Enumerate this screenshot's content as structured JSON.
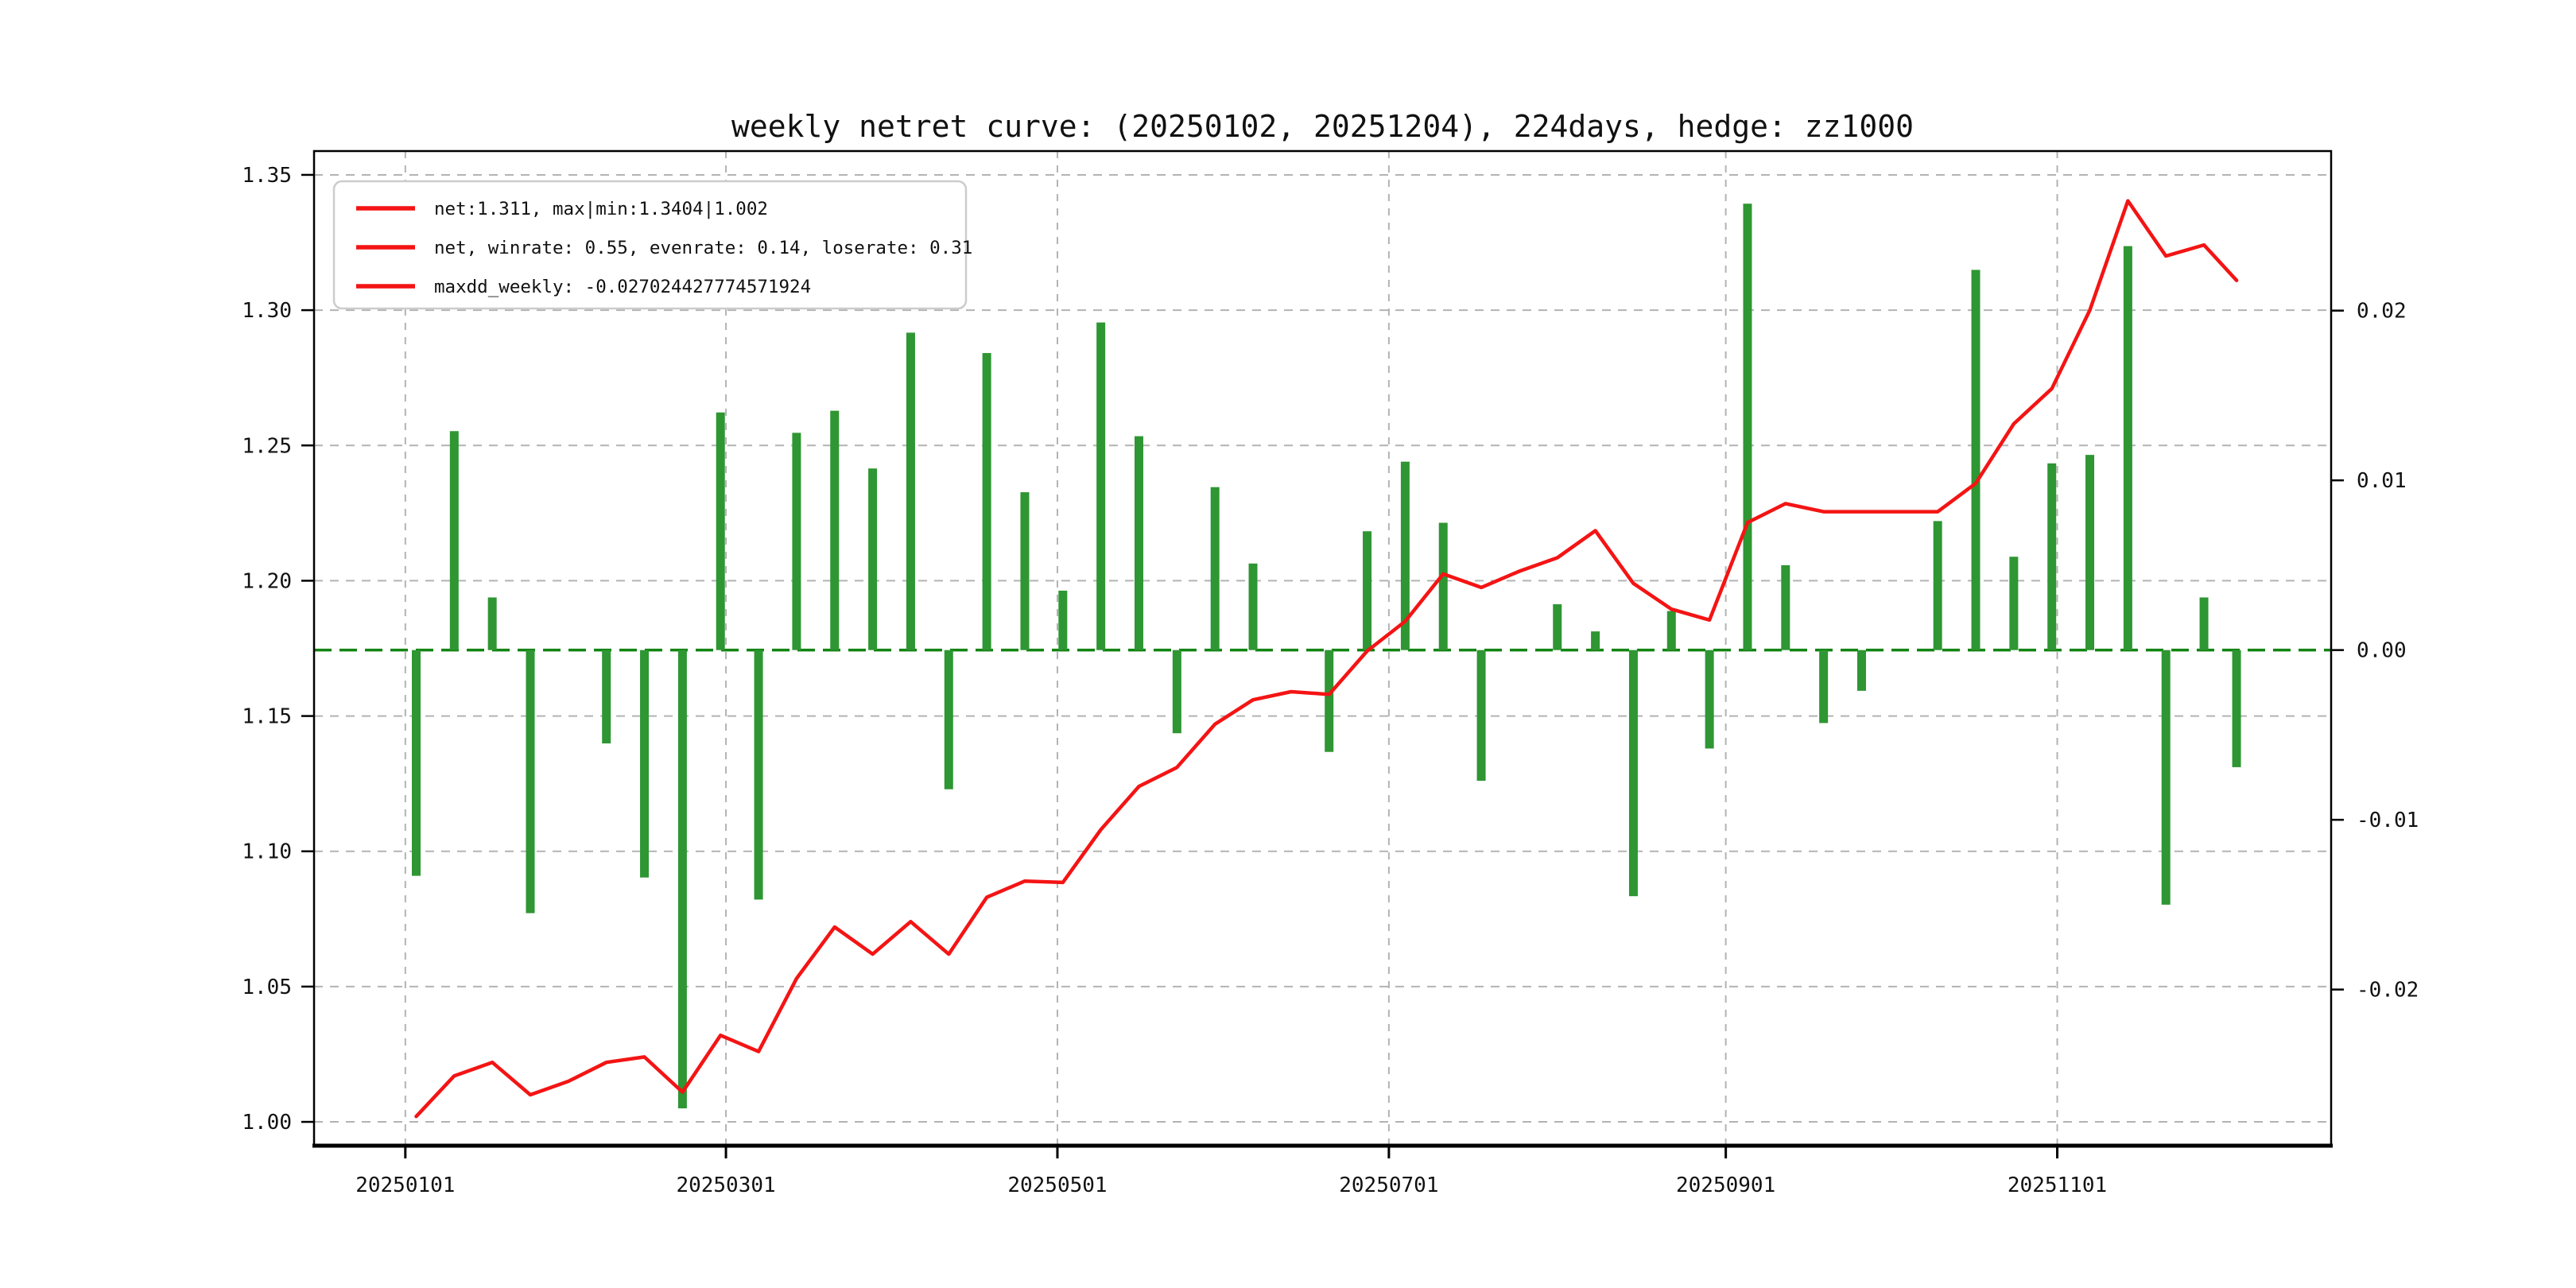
{
  "title": "weekly netret curve: (20250102, 20251204), 224days, hedge: zz1000",
  "legend": {
    "entries": [
      "net:1.311, max|min:1.3404|1.002",
      "net, winrate: 0.55, evenrate: 0.14, loserate: 0.31",
      "maxdd_weekly: -0.027024427774571924"
    ],
    "swatch_color": "#f41414"
  },
  "colors": {
    "line": "#f41414",
    "bar": "#2e9632",
    "zero_line": "#128312",
    "grid": "#b3b3b3",
    "axis": "#000000",
    "text": "#111111",
    "legend_border": "#cccccc"
  },
  "chart_data": {
    "type": "bar+line",
    "title": "weekly netret curve: (20250102, 20251204), 224days, hedge: zz1000",
    "x_dates": [
      "20250103",
      "20250110",
      "20250117",
      "20250124",
      "20250131",
      "20250207",
      "20250214",
      "20250221",
      "20250228",
      "20250307",
      "20250314",
      "20250321",
      "20250328",
      "20250404",
      "20250411",
      "20250418",
      "20250425",
      "20250502",
      "20250509",
      "20250516",
      "20250523",
      "20250530",
      "20250606",
      "20250613",
      "20250620",
      "20250627",
      "20250704",
      "20250711",
      "20250718",
      "20250725",
      "20250801",
      "20250808",
      "20250815",
      "20250822",
      "20250829",
      "20250905",
      "20250912",
      "20250919",
      "20250926",
      "20251003",
      "20251010",
      "20251017",
      "20251024",
      "20251031",
      "20251107",
      "20251114",
      "20251121",
      "20251128",
      "20251204"
    ],
    "series": [
      {
        "name": "net cumulative curve",
        "type": "line",
        "axis": "left",
        "values": [
          1.002,
          1.017,
          1.022,
          1.01,
          1.015,
          1.022,
          1.024,
          1.011,
          1.032,
          1.026,
          1.053,
          1.072,
          1.062,
          1.074,
          1.062,
          1.083,
          1.089,
          1.0885,
          1.108,
          1.124,
          1.131,
          1.147,
          1.156,
          1.159,
          1.158,
          1.174,
          1.185,
          1.2025,
          1.1975,
          1.2035,
          1.2085,
          1.2185,
          1.199,
          1.1895,
          1.1855,
          1.2215,
          1.2285,
          1.2255,
          1.2255,
          1.2255,
          1.2255,
          1.236,
          1.258,
          1.271,
          1.3,
          1.3404,
          1.32,
          1.3241,
          1.311
        ]
      },
      {
        "name": "weekly return bars",
        "type": "bar",
        "axis": "right",
        "values": [
          -0.0133,
          0.0129,
          0.0031,
          -0.0155,
          0,
          -0.0055,
          -0.0134,
          -0.027,
          0.014,
          -0.0147,
          0.0128,
          0.0141,
          0.0107,
          0.0187,
          -0.0082,
          0.0175,
          0.0093,
          0.0035,
          0.0193,
          0.0126,
          -0.0049,
          0.0096,
          0.0051,
          0,
          -0.006,
          0.007,
          0.0111,
          0.0075,
          -0.0077,
          0,
          0.0027,
          0.0011,
          -0.0145,
          0.0023,
          -0.0058,
          0.0263,
          0.005,
          -0.0043,
          -0.0024,
          0,
          0.0076,
          0.0224,
          0.0055,
          0.011,
          0.0115,
          0.0238,
          -0.015,
          0.0031,
          -0.0069
        ]
      }
    ],
    "left_axis": {
      "ticks": [
        1.0,
        1.05,
        1.1,
        1.15,
        1.2,
        1.25,
        1.3,
        1.35
      ],
      "lim": [
        0.9912,
        1.3588
      ]
    },
    "right_axis": {
      "ticks": [
        0.02,
        0.01,
        0.0,
        -0.01,
        -0.02
      ],
      "lim": [
        -0.0292,
        0.0294
      ]
    },
    "x_axis": {
      "tick_dates": [
        "20250101",
        "20250301",
        "20250501",
        "20250701",
        "20250901",
        "20251101"
      ],
      "lim_days": [
        -16.8,
        354.4
      ],
      "epoch": "20250101"
    },
    "zero_line_value": 0.0,
    "grid": true,
    "legend_position": "upper-left"
  }
}
